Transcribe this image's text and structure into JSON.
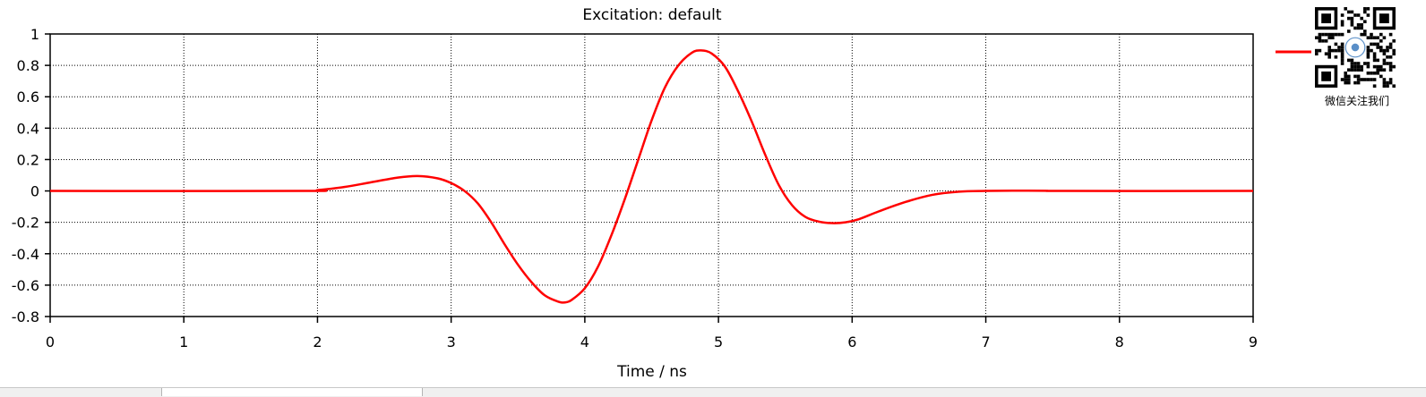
{
  "chart_data": {
    "type": "line",
    "title": "Excitation: default",
    "xlabel": "Time / ns",
    "ylabel": "",
    "xlim": [
      0,
      9
    ],
    "ylim": [
      -0.8,
      1
    ],
    "xticks": [
      "0",
      "1",
      "2",
      "3",
      "4",
      "5",
      "6",
      "7",
      "8",
      "9"
    ],
    "yticks": [
      "-0.8",
      "-0.6",
      "-0.4",
      "-0.2",
      "0",
      "0.2",
      "0.4",
      "0.6",
      "0.8",
      "1"
    ],
    "grid": true,
    "legend_placement": "right",
    "series": [
      {
        "color": "#ff0000",
        "x": [
          0,
          1.9,
          2.0,
          2.2,
          2.4,
          2.6,
          2.75,
          2.9,
          3.0,
          3.1,
          3.2,
          3.3,
          3.4,
          3.5,
          3.6,
          3.7,
          3.8,
          3.85,
          3.9,
          4.0,
          4.1,
          4.2,
          4.3,
          4.4,
          4.5,
          4.6,
          4.7,
          4.8,
          4.87,
          4.95,
          5.05,
          5.15,
          5.25,
          5.35,
          5.45,
          5.55,
          5.65,
          5.75,
          5.85,
          5.95,
          6.05,
          6.2,
          6.4,
          6.6,
          6.8,
          7.0,
          7.2,
          7.45,
          7.6,
          9.0
        ],
        "y": [
          0,
          0,
          0.005,
          0.025,
          0.055,
          0.085,
          0.095,
          0.08,
          0.05,
          0.0,
          -0.08,
          -0.2,
          -0.34,
          -0.47,
          -0.58,
          -0.665,
          -0.705,
          -0.71,
          -0.695,
          -0.62,
          -0.48,
          -0.28,
          -0.05,
          0.2,
          0.45,
          0.66,
          0.8,
          0.88,
          0.895,
          0.875,
          0.79,
          0.63,
          0.44,
          0.23,
          0.04,
          -0.09,
          -0.165,
          -0.195,
          -0.205,
          -0.2,
          -0.18,
          -0.13,
          -0.07,
          -0.025,
          -0.005,
          0.0,
          0.002,
          0.001,
          0.0,
          0.0
        ]
      }
    ]
  },
  "sidebar": {
    "qr_caption": "微信关注我们"
  }
}
